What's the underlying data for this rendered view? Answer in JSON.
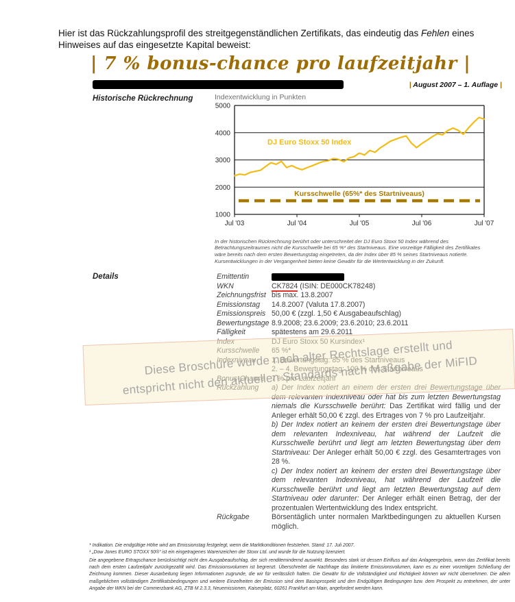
{
  "intro": {
    "part1": "Hier ist das Rückzahlungsprofil des streitgegenständlichen Zertifikats, das eindeutig das ",
    "emphasis": "Fehlen",
    "part2": " eines Hinweises auf das eingesetzte Kapital beweist:"
  },
  "header": {
    "title": "| 7 % bonus-chance pro laufzeitjahr |",
    "pipe": "|",
    "edition": " August 2007 – 1. Auflage "
  },
  "sections": {
    "historic_label": "Historische Rückrechnung",
    "details_label": "Details"
  },
  "chart_data": {
    "type": "line",
    "title": "Indexentwicklung in Punkten",
    "series_label": "DJ Euro Stoxx 50 Index",
    "threshold_label": "Kursschwelle (65%* des Startniveaus)",
    "threshold_value": 1500,
    "ylim": [
      1000,
      5000
    ],
    "yticks": [
      1000,
      2000,
      3000,
      4000,
      5000
    ],
    "xticks": [
      "Jul '03",
      "Jul '04",
      "Jul '05",
      "Jul '06",
      "Jul '07"
    ],
    "x_interval": "monthly, Jul 2003 – Jul 2007",
    "values": [
      2420,
      2480,
      2450,
      2540,
      2580,
      2620,
      2760,
      2900,
      2840,
      2950,
      2720,
      2790,
      2700,
      2640,
      2720,
      2790,
      2870,
      2940,
      2970,
      3050,
      3020,
      2930,
      3070,
      3120,
      3250,
      3180,
      3350,
      3280,
      3440,
      3560,
      3690,
      3760,
      3830,
      3880,
      3620,
      3450,
      3600,
      3720,
      3850,
      3960,
      3920,
      4080,
      4170,
      4090,
      3940,
      4180,
      4380,
      4560,
      4500
    ],
    "colors": {
      "line": "#f1bc16",
      "threshold": "#a87900",
      "frame": "#1a1a1a"
    },
    "grid": "horizontal lines at yticks",
    "legend_position": "inline labels"
  },
  "chart_note": "In der historischen Rückrechnung berührt oder unterschreitet der DJ Euro Stoxx 50 Index während des Betrachtungszeitraumes nicht die Kursschwelle bei 65 %* des Startniveaus. Eine vorzeitige Fälligkeit des Zertifikates wäre bereits nach dem ersten Bewertungstag eingetreten, da der Index über 85 % seines Startniveaus notierte. Kursentwicklungen in der Vergangenheit bieten keine Gewähr für die Wertentwicklung in der Zukunft.",
  "details": {
    "emittentin_label": "Emittentin",
    "wkn": {
      "label": "WKN",
      "code": "CK7824",
      "rest": " (ISIN: DE000CK78248)"
    },
    "rows": [
      {
        "label": "Zeichnungsfrist",
        "value": "bis max. 13.8.2007"
      },
      {
        "label": "Emissionstag",
        "value": "14.8.2007 (Valuta 17.8.2007)"
      },
      {
        "label": "Emissionspreis",
        "value": "50,00 € (zzgl. 1,50 € Ausgabeaufschlag)"
      },
      {
        "label": "Bewertungstage",
        "value": "8.9.2008; 23.6.2009; 23.6.2010; 23.6.2011"
      },
      {
        "label": "Fälligkeit",
        "value": "spätestens am 29.6.2011"
      },
      {
        "label": "Index",
        "value": "DJ Euro Stoxx 50 Kursindex¹"
      },
      {
        "label": "Kursschwelle",
        "value": "65 %*"
      },
      {
        "label": "Indexniveau",
        "value": "1. Bewertungstag: 85 % des Startniveaus"
      },
      {
        "label": "",
        "value": "2. – 4. Bewertungstag: 100 % des Startniveaus"
      },
      {
        "label": "Bonus-Chance",
        "value": "7 % pro Laufzeitjahr"
      }
    ],
    "rueckzahlung": {
      "label": "Rückzahlung",
      "a_cond": "a) Der Index notiert an einem der ersten drei Bewertungstage über dem relevanten Indexniveau oder hat bis zum letzten Bewertungstag niemals die Kursschwelle berührt:",
      "a_result": " Das Zertifikat wird fällig und der Anleger erhält 50,00 € zzgl. des Ertrages von 7 % pro Laufzeitjahr.",
      "b_cond": "b) Der Index notiert an keinem der ersten drei Bewertungstage über dem relevanten Indexniveau, hat während der Laufzeit die Kursschwelle berührt und liegt am letzten Bewertungstag über dem Startniveau:",
      "b_result": " Der Anleger erhält 50,00 € zzgl. des Gesamtertrages von 28 %.",
      "c_cond": "c) Der Index notiert an keinem der ersten drei Bewertungstage über dem relevanten Indexniveau, hat während der Laufzeit die Kursschwelle berührt und liegt am letzten Bewertungstag auf dem Startniveau oder darunter:",
      "c_result": " Der Anleger erhält einen Betrag, der der prozentualen Wertentwicklung des Index entspricht."
    },
    "rueckgabe": {
      "label": "Rückgabe",
      "value": "Börsentäglich unter normalen Marktbedingungen zu aktuellen Kursen möglich."
    }
  },
  "watermark": {
    "line1": "Diese Broschüre wurde nach alter Rechtslage erstellt und",
    "line2": "entspricht nicht den aktuellen Standards nach Maßgabe der MiFID"
  },
  "footnotes": {
    "fn1": "* Indikation. Die endgültige Höhe wird am Emissionstag festgelegt, wenn die Marktkonditionen feststehen. Stand: 17. Juli 2007.",
    "fn2": "¹ „Dow Jones EURO STOXX 50®“ ist ein eingetragenes Warenzeichen der Stoxx Ltd. und wurde für die Nutzung lizenziert.",
    "body": "Die angegebene Ertragschance berücksichtigt nicht den Ausgabeaufschlag, der sich renditemindernd auswirkt. Besonders stark ist dessen Einfluss auf das Anlageergebnis, wenn das Zertifikat bereits nach dem ersten Laufzeitjahr zurückgezahlt wird. Das Emissionsvolumen ist begrenzt. Überschreitet die Nachfrage das limitierte Emissionsvolumen, kann es zu einer vorzeitigen Schließung der Zeichnung kommen. Dieser Ausarbeitung liegen Informationen zugrunde, die wir für verlässlich halten. Die Gewähr für die Vollständigkeit und Richtigkeit können wir nicht übernehmen. Die allein maßgeblichen vollständigen Zertifikatsbedingungen und weitere Einzelheiten der Emission sind dem Basisprospekt und den Endgültigen Bedingungen bzw. dem Prospekt zu entnehmen, der unter Angabe der WKN bei der Commerzbank AG, ZTB M 2.3.3, Neuemissionen, Kaiserplatz, 60261 Frankfurt am Main, angefordert werden kann."
  }
}
